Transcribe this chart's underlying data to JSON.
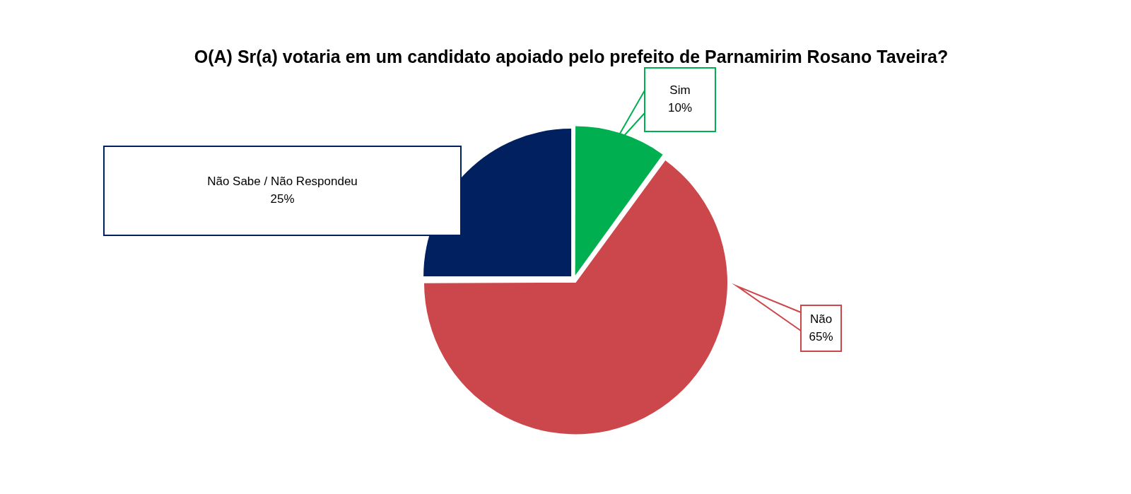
{
  "chart_data": {
    "type": "pie",
    "title": "O(A) Sr(a) votaria em um candidato apoiado pelo prefeito de Parnamirim Rosano Taveira?",
    "categories": [
      "Sim",
      "Não",
      "Não Sabe / Não Respondeu"
    ],
    "values": [
      10,
      65,
      25
    ],
    "value_labels": [
      "10%",
      "65%",
      "25%"
    ],
    "colors": [
      "#00b050",
      "#cc474b",
      "#002060"
    ],
    "legend": false
  }
}
